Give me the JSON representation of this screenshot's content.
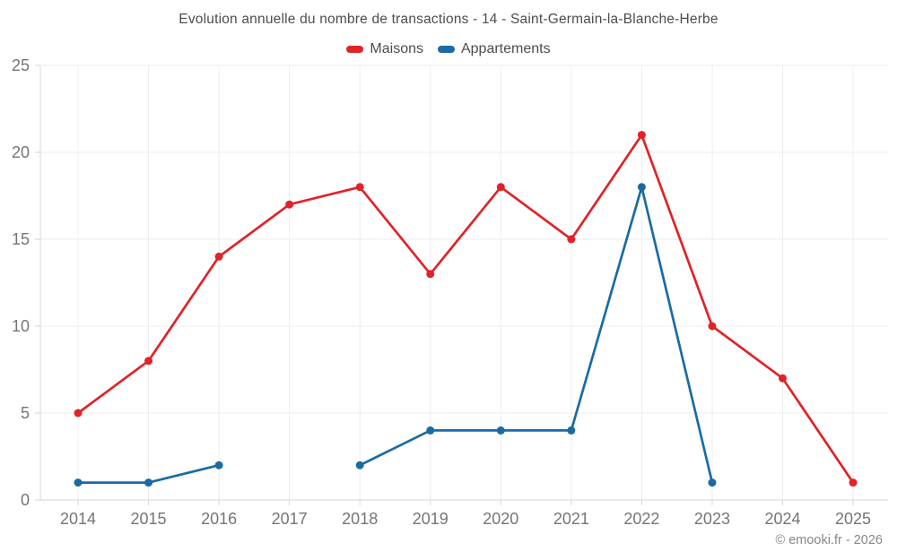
{
  "header": {
    "title": "Evolution annuelle du nombre de transactions - 14 - Saint-Germain-la-Blanche-Herbe"
  },
  "legend": {
    "items": [
      {
        "label": "Maisons",
        "color": "#e02328"
      },
      {
        "label": "Appartements",
        "color": "#1a6ba3"
      }
    ]
  },
  "footer": {
    "copyright": "© emooki.fr - 2026"
  },
  "chart_data": {
    "type": "line",
    "title": "Evolution annuelle du nombre de transactions - 14 - Saint-Germain-la-Blanche-Herbe",
    "x": [
      2014,
      2015,
      2016,
      2017,
      2018,
      2019,
      2020,
      2021,
      2022,
      2023,
      2024,
      2025
    ],
    "series": [
      {
        "name": "Maisons",
        "color": "#e02328",
        "values": [
          5,
          8,
          14,
          17,
          18,
          13,
          18,
          15,
          21,
          10,
          7,
          1
        ]
      },
      {
        "name": "Appartements",
        "color": "#1a6ba3",
        "values": [
          1,
          1,
          2,
          null,
          2,
          4,
          4,
          4,
          18,
          1,
          null,
          null
        ]
      }
    ],
    "xlabel": "",
    "ylabel": "",
    "ylim": [
      0,
      25
    ],
    "yticks": [
      0,
      5,
      10,
      15,
      20,
      25
    ],
    "grid": true,
    "legend_position": "top",
    "style": {
      "grid_color": "#ededed",
      "axis_color": "#d6d6d6",
      "tick_label_color": "#757575",
      "marker_radius": 4.5,
      "line_width": 2.7
    }
  }
}
